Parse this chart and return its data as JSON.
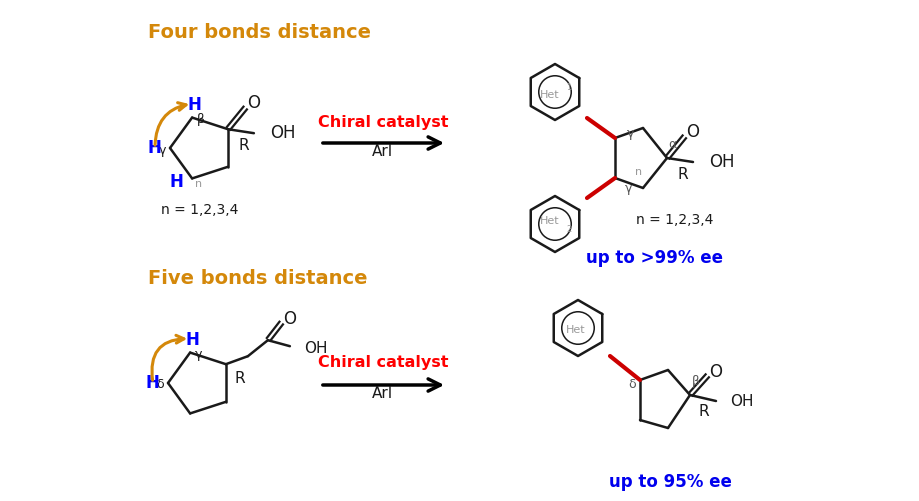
{
  "bg_color": "#ffffff",
  "title_four": "Four bonds distance",
  "title_five": "Five bonds distance",
  "title_color": "#D4880A",
  "catalyst_text": "Chiral catalyst",
  "catalyst_color": "#FF0000",
  "arl_text": "ArI",
  "blue_color": "#0000FF",
  "red_color": "#CC0000",
  "gray_color": "#999999",
  "black_color": "#1a1a1a",
  "ee_color": "#0000EE",
  "ee_text_top": "up to >99% ee",
  "ee_text_bot": "up to 95% ee",
  "orange_color": "#D4880A"
}
